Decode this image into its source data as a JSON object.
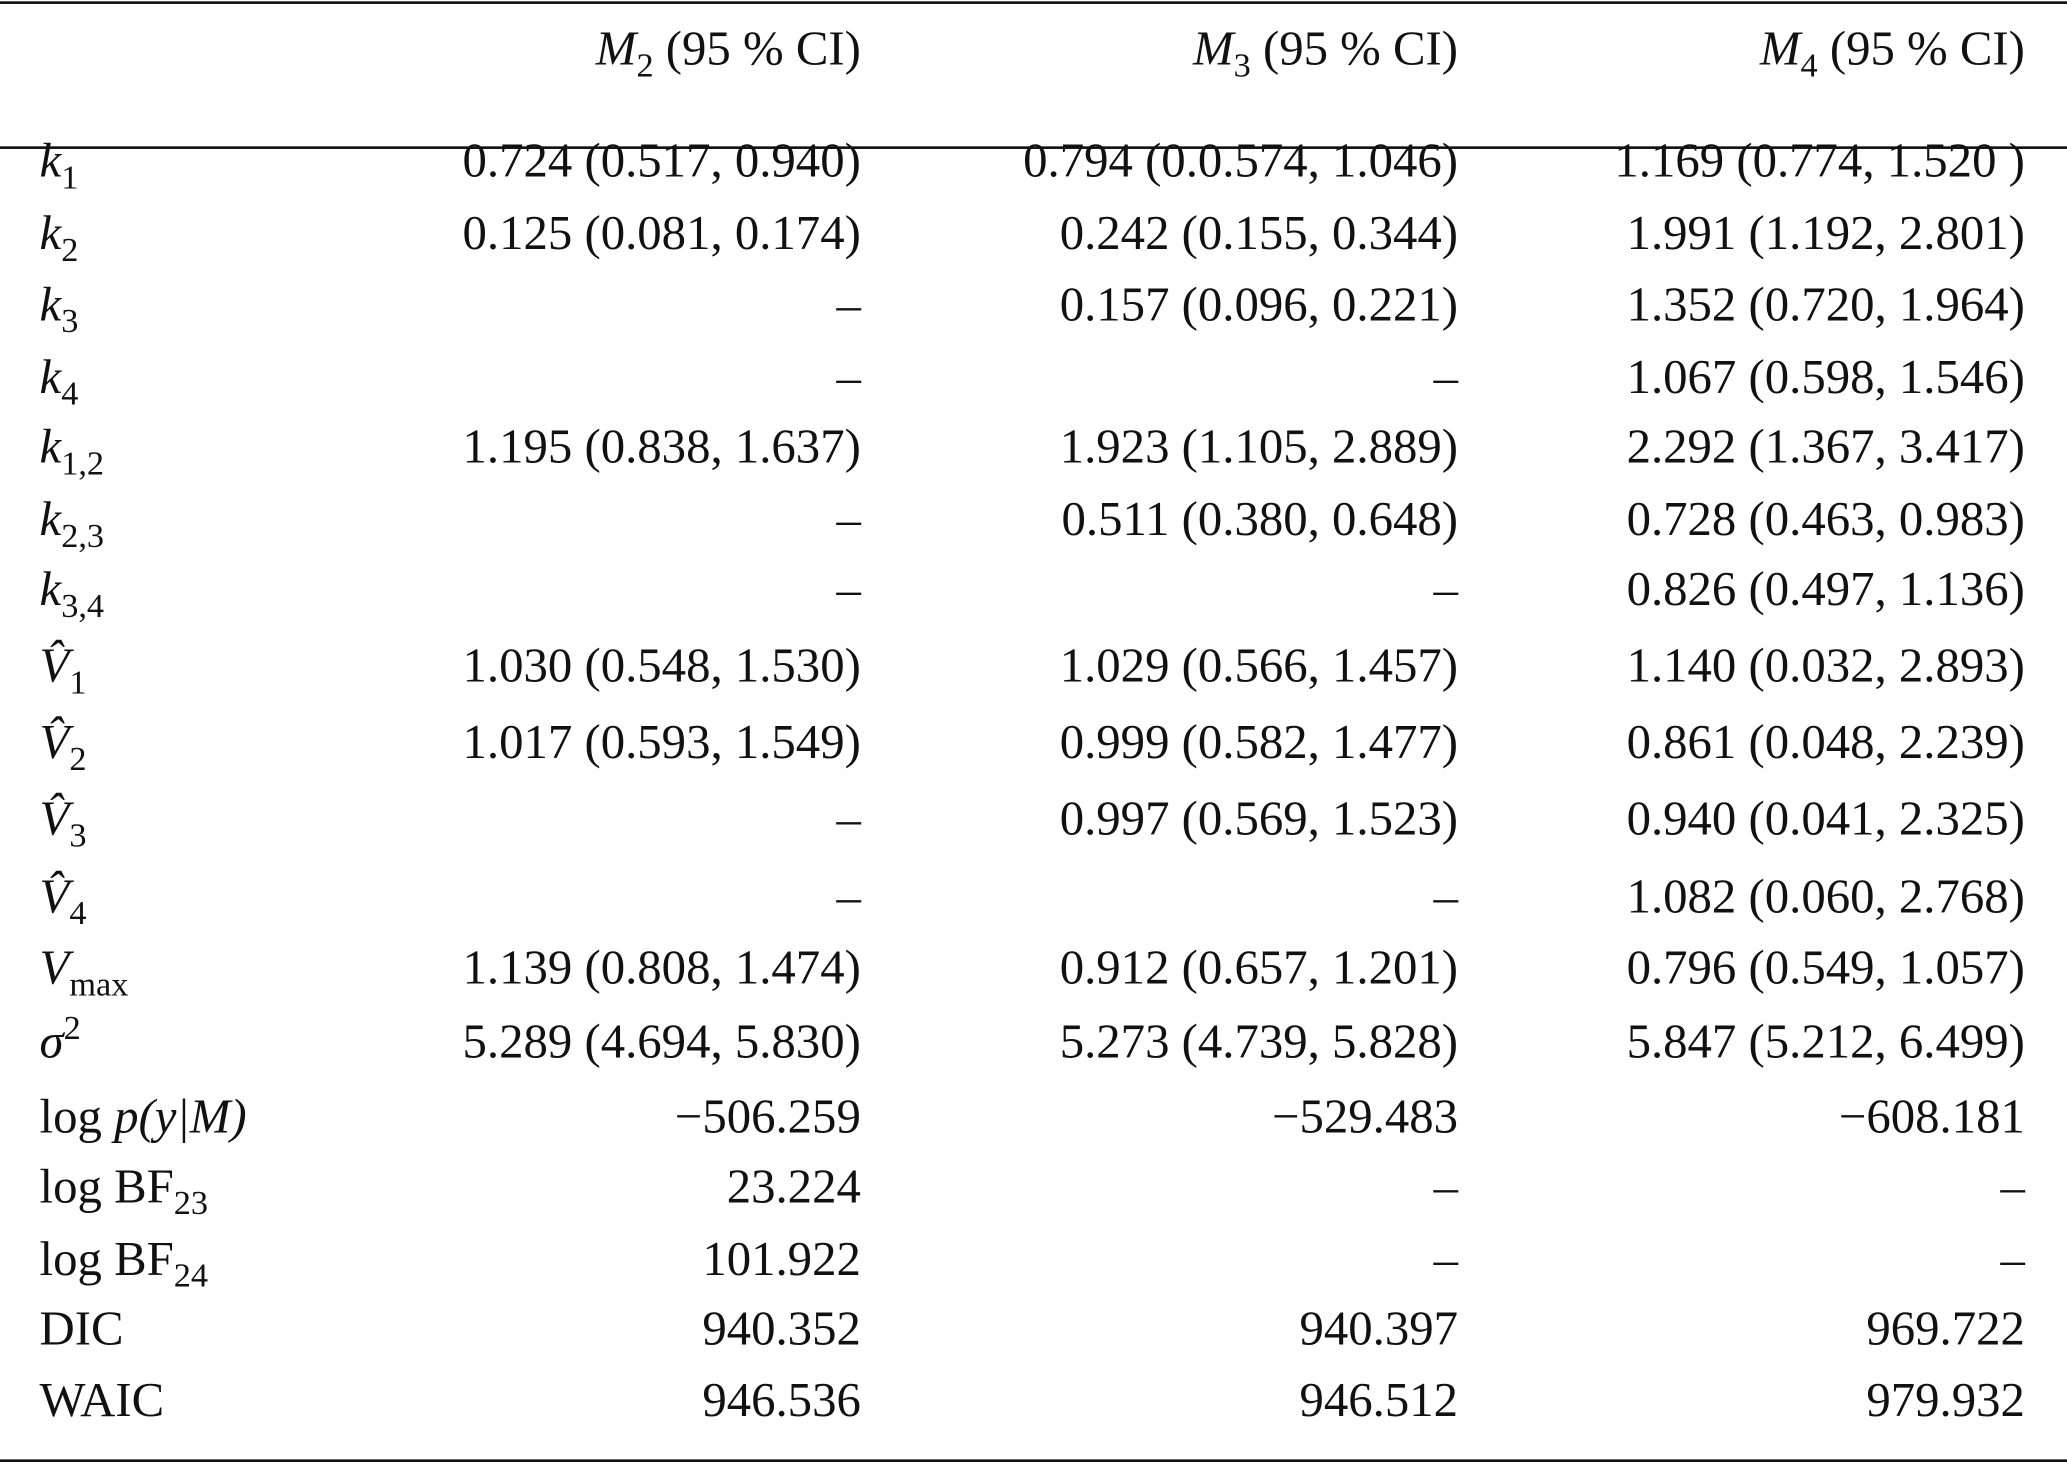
{
  "columns": [
    {
      "model": "M",
      "sub": "2",
      "suffix": " (95 % CI)"
    },
    {
      "model": "M",
      "sub": "3",
      "suffix": " (95 % CI)"
    },
    {
      "model": "M",
      "sub": "4",
      "suffix": " (95 % CI)"
    }
  ],
  "rows": [
    {
      "label": {
        "pre": "",
        "it": "k",
        "sub": "1",
        "sup": ""
      },
      "values": [
        "0.724 (0.517, 0.940)",
        "0.794 (0.0.574, 1.046)",
        "1.169 (0.774, 1.520 )"
      ]
    },
    {
      "label": {
        "pre": "",
        "it": "k",
        "sub": "2",
        "sup": ""
      },
      "values": [
        "0.125 (0.081, 0.174)",
        "0.242 (0.155, 0.344)",
        "1.991 (1.192, 2.801)"
      ]
    },
    {
      "label": {
        "pre": "",
        "it": "k",
        "sub": "3",
        "sup": ""
      },
      "values": [
        "–",
        "0.157 (0.096, 0.221)",
        "1.352 (0.720, 1.964)"
      ]
    },
    {
      "label": {
        "pre": "",
        "it": "k",
        "sub": "4",
        "sup": ""
      },
      "values": [
        "–",
        "–",
        "1.067 (0.598, 1.546)"
      ]
    },
    {
      "label": {
        "pre": "",
        "it": "k",
        "sub": "1,2",
        "sup": ""
      },
      "values": [
        "1.195 (0.838, 1.637)",
        "1.923 (1.105, 2.889)",
        "2.292 (1.367, 3.417)"
      ]
    },
    {
      "label": {
        "pre": "",
        "it": "k",
        "sub": "2,3",
        "sup": ""
      },
      "values": [
        "–",
        "0.511 (0.380, 0.648)",
        "0.728 (0.463, 0.983)"
      ]
    },
    {
      "label": {
        "pre": "",
        "it": "k",
        "sub": "3,4",
        "sup": ""
      },
      "values": [
        "–",
        "–",
        "0.826 (0.497, 1.136)"
      ]
    },
    {
      "label": {
        "pre": "",
        "it": "V̂",
        "sub": "1",
        "sup": ""
      },
      "values": [
        "1.030 (0.548, 1.530)",
        "1.029 (0.566, 1.457)",
        "1.140 (0.032, 2.893)"
      ]
    },
    {
      "label": {
        "pre": "",
        "it": "V̂",
        "sub": "2",
        "sup": ""
      },
      "values": [
        "1.017 (0.593, 1.549)",
        "0.999 (0.582, 1.477)",
        "0.861 (0.048, 2.239)"
      ]
    },
    {
      "label": {
        "pre": "",
        "it": "V̂",
        "sub": "3",
        "sup": ""
      },
      "values": [
        "–",
        "0.997 (0.569, 1.523)",
        "0.940 (0.041, 2.325)"
      ]
    },
    {
      "label": {
        "pre": "",
        "it": "V̂",
        "sub": "4",
        "sup": ""
      },
      "values": [
        "–",
        "–",
        "1.082 (0.060, 2.768)"
      ]
    },
    {
      "label": {
        "pre": "",
        "it": "V",
        "sub": "max",
        "sup": ""
      },
      "values": [
        "1.139 (0.808, 1.474)",
        "0.912 (0.657, 1.201)",
        "0.796 (0.549, 1.057)"
      ]
    },
    {
      "label": {
        "pre": "",
        "it": "σ",
        "sub": "",
        "sup": "2"
      },
      "values": [
        "5.289 (4.694, 5.830)",
        "5.273 (4.739, 5.828)",
        "5.847 (5.212, 6.499)"
      ]
    },
    {
      "label": {
        "pre": "log ",
        "it": "p(y|M)",
        "sub": "",
        "sup": ""
      },
      "values": [
        "−506.259",
        "−529.483",
        "−608.181"
      ]
    },
    {
      "label": {
        "pre": "log BF",
        "it": "",
        "sub": "23",
        "sup": ""
      },
      "values": [
        "23.224",
        "–",
        "–"
      ]
    },
    {
      "label": {
        "pre": "log BF",
        "it": "",
        "sub": "24",
        "sup": ""
      },
      "values": [
        "101.922",
        "–",
        "–"
      ]
    },
    {
      "label": {
        "pre": "DIC",
        "it": "",
        "sub": "",
        "sup": ""
      },
      "values": [
        "940.352",
        "940.397",
        "969.722"
      ]
    },
    {
      "label": {
        "pre": "WAIC",
        "it": "",
        "sub": "",
        "sup": ""
      },
      "values": [
        "946.536",
        "946.512",
        "979.932"
      ]
    }
  ]
}
